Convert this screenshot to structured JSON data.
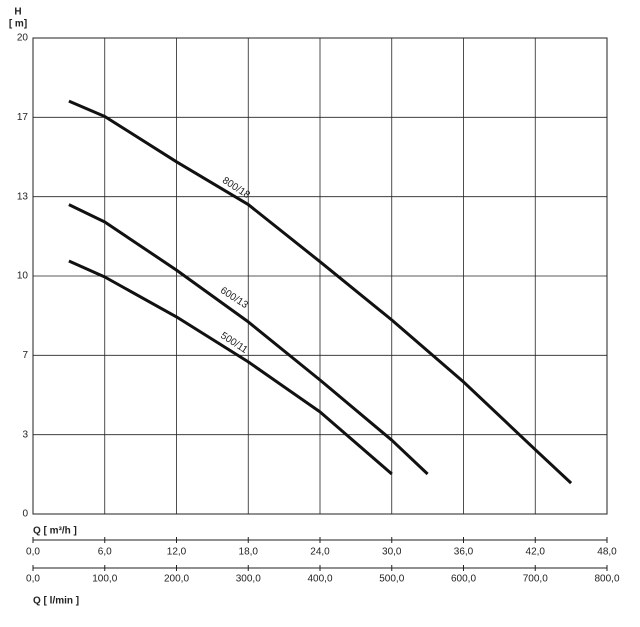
{
  "chart_data": {
    "type": "line",
    "y_label_top": "H",
    "y_label_unit": "[ m]",
    "x_label": "Q [ m³/h ]",
    "x2_label": "Q [ l/min ]",
    "xlim": [
      0,
      48
    ],
    "ylim": [
      0,
      20
    ],
    "x2lim": [
      0,
      800
    ],
    "xticks": [
      {
        "value": 0,
        "label": "0,0"
      },
      {
        "value": 6,
        "label": "6,0"
      },
      {
        "value": 12,
        "label": "12,0"
      },
      {
        "value": 18,
        "label": "18,0"
      },
      {
        "value": 24,
        "label": "24,0"
      },
      {
        "value": 30,
        "label": "30,0"
      },
      {
        "value": 36,
        "label": "36,0"
      },
      {
        "value": 42,
        "label": "42,0"
      },
      {
        "value": 48,
        "label": "48,0"
      }
    ],
    "x2ticks": [
      {
        "value": 0,
        "label": "0,0"
      },
      {
        "value": 100,
        "label": "100,0"
      },
      {
        "value": 200,
        "label": "200,0"
      },
      {
        "value": 300,
        "label": "300,0"
      },
      {
        "value": 400,
        "label": "400,0"
      },
      {
        "value": 500,
        "label": "500,0"
      },
      {
        "value": 600,
        "label": "600,0"
      },
      {
        "value": 700,
        "label": "700,0"
      },
      {
        "value": 800,
        "label": "800,0"
      }
    ],
    "yticks": [
      0,
      {
        "value": 3.333,
        "label": "3"
      },
      {
        "value": 6.667,
        "label": "7"
      },
      10,
      {
        "value": 13.333,
        "label": "13"
      },
      {
        "value": 16.667,
        "label": "17"
      },
      20
    ],
    "grid": true,
    "series": [
      {
        "name": "800/18",
        "color": "#111111",
        "x": [
          3,
          6,
          12,
          18,
          24,
          30,
          36,
          42,
          45
        ],
        "values": [
          17.35,
          16.7,
          14.8,
          13.0,
          10.6,
          8.15,
          5.55,
          2.7,
          1.3
        ]
      },
      {
        "name": "600/13",
        "color": "#111111",
        "x": [
          3,
          6,
          12,
          18,
          24,
          30,
          33
        ],
        "values": [
          13.0,
          12.27,
          10.25,
          8.07,
          5.63,
          3.1,
          1.68
        ]
      },
      {
        "name": "500/11",
        "color": "#111111",
        "x": [
          3,
          6,
          12,
          18,
          24,
          30
        ],
        "values": [
          10.63,
          9.96,
          8.28,
          6.39,
          4.29,
          1.68
        ]
      }
    ]
  }
}
